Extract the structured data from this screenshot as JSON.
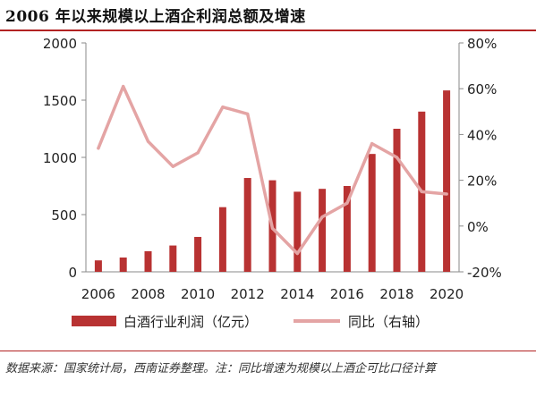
{
  "header": {
    "title": "2006 年以来规模以上酒企利润总额及增速"
  },
  "chart_data": {
    "type": "bar",
    "categories": [
      "2006",
      "2007",
      "2008",
      "2009",
      "2010",
      "2011",
      "2012",
      "2013",
      "2014",
      "2015",
      "2016",
      "2017",
      "2018",
      "2019",
      "2020"
    ],
    "x_ticks": [
      "2006",
      "2008",
      "2010",
      "2012",
      "2014",
      "2016",
      "2018",
      "2020"
    ],
    "series": [
      {
        "name": "白酒行业利润（亿元）",
        "type": "bar",
        "axis": "left",
        "color": "#b83232",
        "values": [
          100,
          125,
          180,
          230,
          305,
          565,
          820,
          800,
          700,
          725,
          750,
          1030,
          1250,
          1400,
          1585
        ]
      },
      {
        "name": "同比（右轴）",
        "type": "line",
        "axis": "right",
        "color": "#e4a4a4",
        "values": [
          34,
          61,
          37,
          26,
          32,
          52,
          49,
          -1,
          -12,
          4,
          10,
          36,
          30,
          15,
          14
        ]
      }
    ],
    "y_left": {
      "min": 0,
      "max": 2000,
      "ticks": [
        0,
        500,
        1000,
        1500,
        2000
      ],
      "tick_labels": [
        "0",
        "500",
        "1000",
        "1500",
        "2000"
      ]
    },
    "y_right": {
      "min": -20,
      "max": 80,
      "ticks": [
        -20,
        0,
        20,
        40,
        60,
        80
      ],
      "tick_labels": [
        "-20%",
        "0%",
        "20%",
        "40%",
        "60%",
        "80%"
      ]
    },
    "grid": false,
    "legend_position": "bottom"
  },
  "footer": {
    "source": "数据来源：国家统计局，西南证券整理。注：同比增速为规模以上酒企可比口径计算"
  }
}
